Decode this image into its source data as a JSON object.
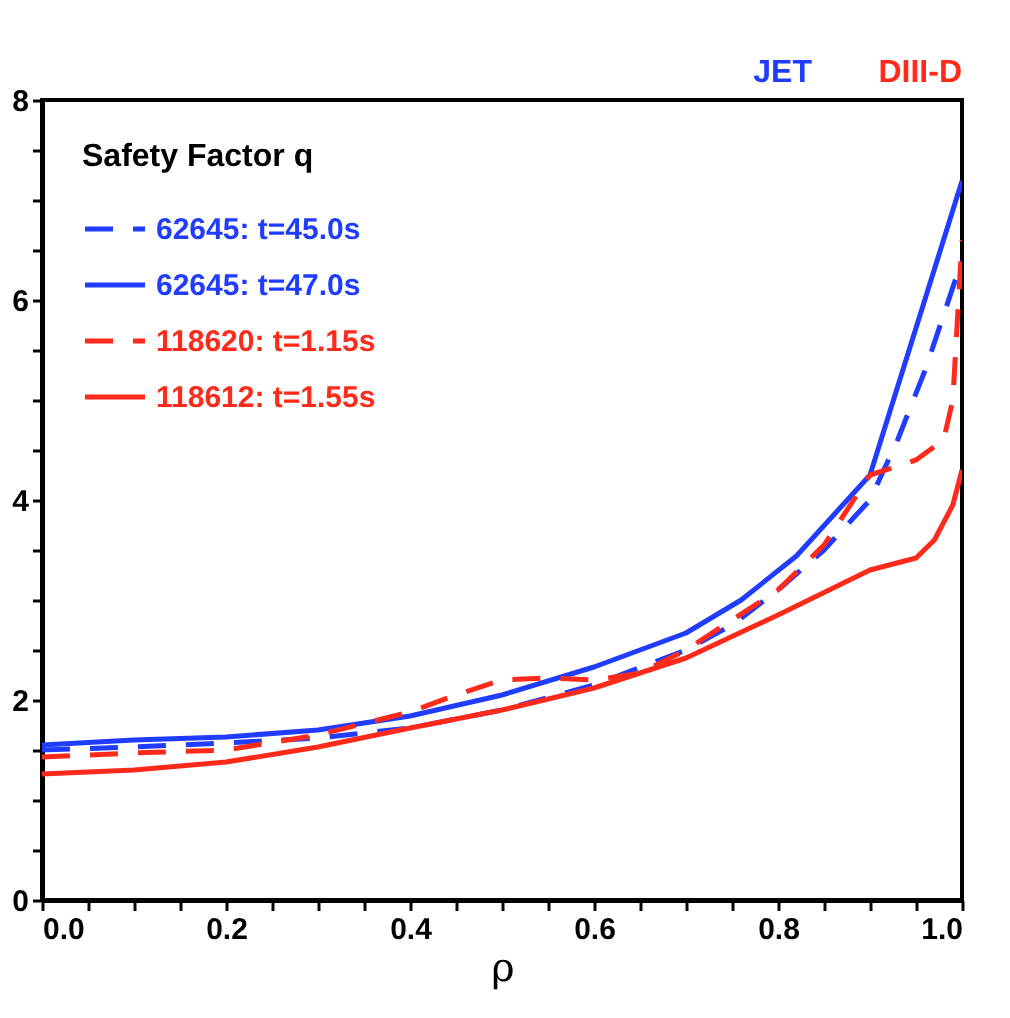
{
  "chart_data": {
    "type": "line",
    "xlabel": "ρ",
    "legend_title": "Safety Factor q",
    "legend": "top left",
    "grid": false,
    "annotations": [
      "JET",
      "DIII-D"
    ],
    "xlim": [
      0,
      1
    ],
    "ylim": [
      0,
      8
    ],
    "xticks": [
      {
        "value": 0,
        "label": "0.0"
      },
      {
        "value": 0.05,
        "label": null
      },
      {
        "value": 0.1,
        "label": null
      },
      {
        "value": 0.15,
        "label": null
      },
      {
        "value": 0.2,
        "label": "0.2"
      },
      {
        "value": 0.25,
        "label": null
      },
      {
        "value": 0.3,
        "label": null
      },
      {
        "value": 0.35,
        "label": null
      },
      {
        "value": 0.4,
        "label": "0.4"
      },
      {
        "value": 0.45,
        "label": null
      },
      {
        "value": 0.5,
        "label": null
      },
      {
        "value": 0.55,
        "label": null
      },
      {
        "value": 0.6,
        "label": "0.6"
      },
      {
        "value": 0.65,
        "label": null
      },
      {
        "value": 0.7,
        "label": null
      },
      {
        "value": 0.75,
        "label": null
      },
      {
        "value": 0.8,
        "label": "0.8"
      },
      {
        "value": 0.85,
        "label": null
      },
      {
        "value": 0.9,
        "label": null
      },
      {
        "value": 0.95,
        "label": null
      },
      {
        "value": 1,
        "label": "1.0"
      }
    ],
    "yticks": [
      0,
      {
        "value": 0.5,
        "label": null
      },
      {
        "value": 1,
        "label": null
      },
      {
        "value": 1.5,
        "label": null
      },
      2,
      {
        "value": 2.5,
        "label": null
      },
      {
        "value": 3,
        "label": null
      },
      {
        "value": 3.5,
        "label": null
      },
      4,
      {
        "value": 4.5,
        "label": null
      },
      {
        "value": 5,
        "label": null
      },
      {
        "value": 5.5,
        "label": null
      },
      6,
      {
        "value": 6.5,
        "label": null
      },
      {
        "value": 7,
        "label": null
      },
      {
        "value": 7.5,
        "label": null
      },
      8
    ],
    "series": [
      {
        "name": "62645:  t=45.0s",
        "color": "#1f3cff",
        "line_style": "dashed",
        "x": [
          0,
          0.1,
          0.2,
          0.3,
          0.4,
          0.5,
          0.6,
          0.7,
          0.75,
          0.8,
          0.85,
          0.9,
          0.93,
          0.96,
          1.0
        ],
        "values": [
          1.5,
          1.53,
          1.57,
          1.62,
          1.72,
          1.9,
          2.15,
          2.5,
          2.75,
          3.1,
          3.5,
          4.0,
          4.6,
          5.3,
          6.4
        ]
      },
      {
        "name": "62645:  t=47.0s",
        "color": "#1f3cff",
        "line_style": "solid",
        "x": [
          0,
          0.1,
          0.2,
          0.3,
          0.4,
          0.5,
          0.6,
          0.7,
          0.76,
          0.82,
          0.9,
          1.0
        ],
        "values": [
          1.55,
          1.6,
          1.63,
          1.7,
          1.84,
          2.05,
          2.33,
          2.67,
          3.0,
          3.44,
          4.25,
          7.19
        ]
      },
      {
        "name": "118620: t=1.15s",
        "color": "#ff2a1a",
        "line_style": "dashed",
        "x": [
          0,
          0.1,
          0.2,
          0.3,
          0.4,
          0.45,
          0.5,
          0.55,
          0.6,
          0.65,
          0.7,
          0.75,
          0.8,
          0.85,
          0.9,
          0.95,
          0.98,
          0.99,
          1.0
        ],
        "values": [
          1.43,
          1.47,
          1.5,
          1.65,
          1.88,
          2.05,
          2.2,
          2.22,
          2.2,
          2.27,
          2.5,
          2.8,
          3.1,
          3.55,
          4.25,
          4.4,
          4.6,
          5.0,
          6.6
        ]
      },
      {
        "name": "118612: t=1.55s",
        "color": "#ff2a1a",
        "line_style": "solid",
        "x": [
          0,
          0.1,
          0.2,
          0.3,
          0.4,
          0.5,
          0.6,
          0.7,
          0.8,
          0.9,
          0.95,
          0.97,
          0.99,
          1.0
        ],
        "values": [
          1.26,
          1.3,
          1.38,
          1.53,
          1.72,
          1.9,
          2.12,
          2.42,
          2.85,
          3.3,
          3.42,
          3.6,
          3.95,
          4.3
        ]
      }
    ]
  }
}
